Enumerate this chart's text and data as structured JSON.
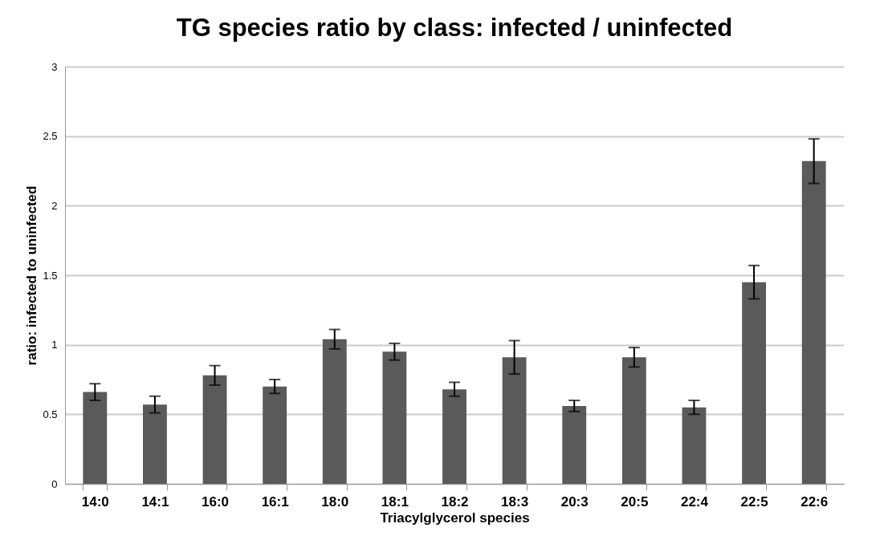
{
  "chart_data": {
    "type": "bar",
    "title": "TG species ratio by class: infected / uninfected",
    "xlabel": "Triacylglycerol species",
    "ylabel": "ratio: infected to uninfected",
    "categories": [
      "14:0",
      "14:1",
      "16:0",
      "16:1",
      "18:0",
      "18:1",
      "18:2",
      "18:3",
      "20:3",
      "20:5",
      "22:4",
      "22:5",
      "22:6"
    ],
    "values": [
      0.66,
      0.57,
      0.78,
      0.7,
      1.04,
      0.95,
      0.68,
      0.91,
      0.56,
      0.91,
      0.55,
      1.45,
      2.32
    ],
    "errors": [
      0.06,
      0.06,
      0.07,
      0.05,
      0.07,
      0.06,
      0.05,
      0.12,
      0.04,
      0.07,
      0.05,
      0.12,
      0.16
    ],
    "color": "#5a5a5a",
    "ylim": [
      0,
      3
    ],
    "yticks": [
      0,
      0.5,
      1,
      1.5,
      2,
      2.5,
      3
    ],
    "grid": "y"
  }
}
